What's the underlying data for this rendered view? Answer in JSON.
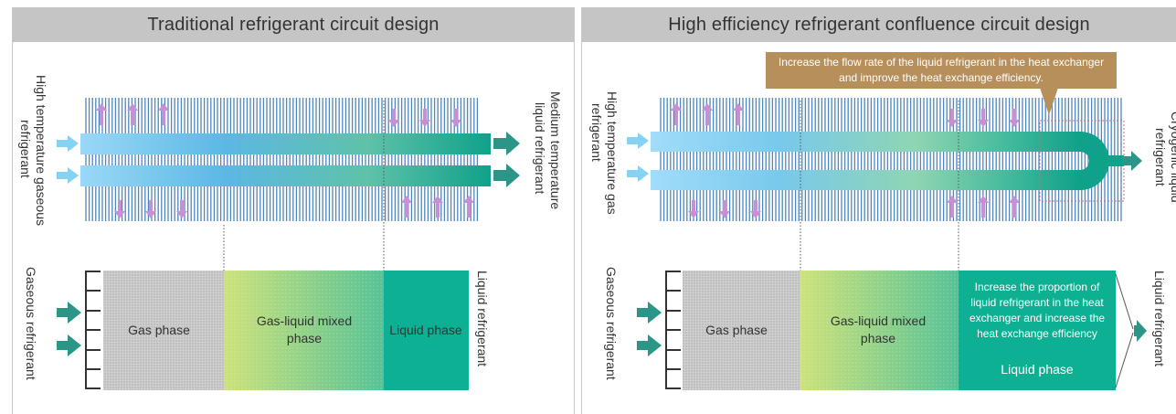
{
  "left_panel": {
    "title": "Traditional refrigerant circuit design",
    "inlet_label_line1": "High temperature gaseous",
    "inlet_label_line2": "refrigerant",
    "outlet_label_line1": "Medium temperature",
    "outlet_label_line2": "liquid refrigerant",
    "bottom_inlet_label": "Gaseous refrigerant",
    "bottom_outlet_label": "Liquid refrigerant",
    "phase_gas": "Gas phase",
    "phase_mixed_line1": "Gas-liquid mixed",
    "phase_mixed_line2": "phase",
    "phase_liquid": "Liquid phase"
  },
  "right_panel": {
    "title": "High efficiency refrigerant confluence circuit design",
    "callout": "Increase the flow rate of the liquid refrigerant in the heat exchanger and improve the heat exchange efficiency.",
    "inlet_label_line1": "High temperature gas",
    "inlet_label_line2": "refrigerant",
    "outlet_label_line1": "Cryogenic liquid",
    "outlet_label_line2": "refrigerant",
    "bottom_inlet_label": "Gaseous refrigerant",
    "bottom_outlet_label": "Liquid refrigerant",
    "phase_gas": "Gas phase",
    "phase_mixed_line1": "Gas-liquid mixed",
    "phase_mixed_line2": "phase",
    "liquid_note": "Increase the proportion of liquid refrigerant in the heat exchanger and increase the heat exchange efficiency",
    "phase_liquid": "Liquid phase"
  },
  "colors": {
    "header_bg": "#c5c5c5",
    "fin_blue": "#4d86c0",
    "tube_light_blue": "#8fd0f4",
    "tube_teal": "#17a58c",
    "liquid_green": "#0db092",
    "mixed_green": "#c8e06e",
    "arrow_pink": "#c98fd6",
    "arrow_teal": "#2b9687",
    "callout_tan": "#b68f5a",
    "highlight_red": "#e06a6a"
  }
}
